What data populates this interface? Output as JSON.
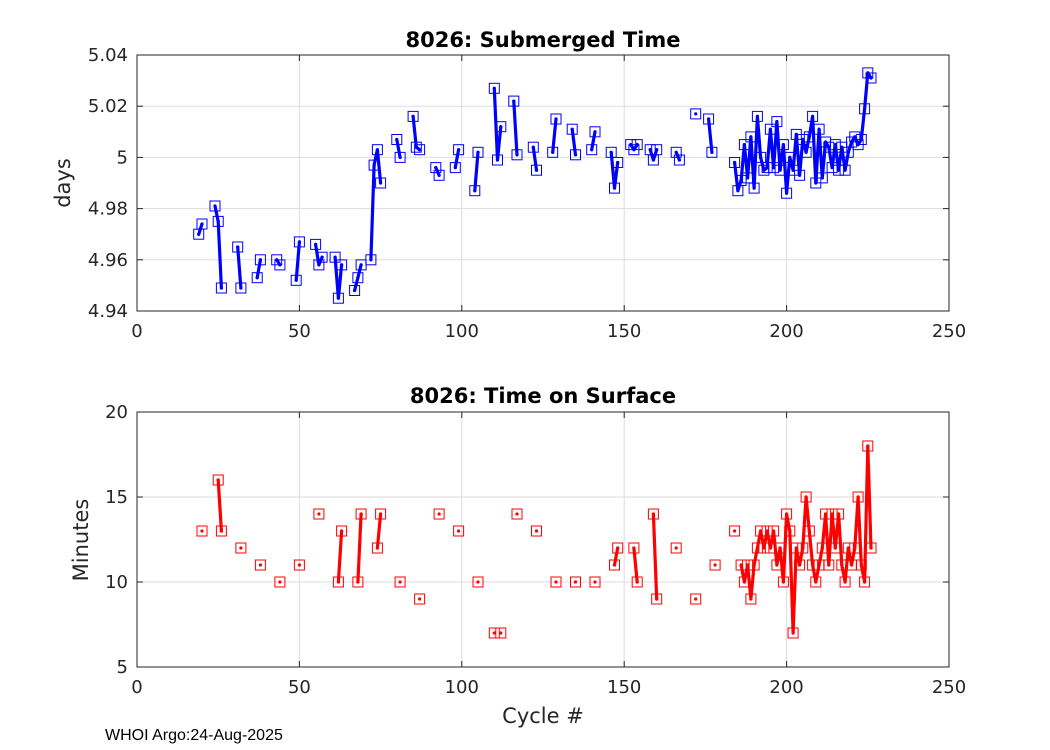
{
  "footer_text": "WHOI Argo:24-Aug-2025",
  "chart_data": [
    {
      "type": "line",
      "title": "8026: Submerged Time",
      "xlabel": "",
      "ylabel": "days",
      "xlim": [
        0,
        250
      ],
      "ylim": [
        4.94,
        5.04
      ],
      "xticks": [
        0,
        50,
        100,
        150,
        200,
        250
      ],
      "xtick_labels": [
        "0",
        "50",
        "100",
        "150",
        "200",
        "250"
      ],
      "yticks": [
        4.94,
        4.96,
        4.98,
        5.0,
        5.02,
        5.04
      ],
      "ytick_labels": [
        "4.94",
        "4.96",
        "4.98",
        "5",
        "5.02",
        "5.04"
      ],
      "grid": true,
      "color": "#0000ff",
      "marker": "square",
      "x": [
        19,
        20,
        24,
        25,
        26,
        31,
        32,
        37,
        38,
        43,
        44,
        49,
        50,
        55,
        56,
        57,
        61,
        62,
        63,
        67,
        68,
        69,
        72,
        73,
        74,
        75,
        80,
        81,
        85,
        86,
        87,
        92,
        93,
        98,
        99,
        104,
        105,
        110,
        111,
        112,
        116,
        117,
        122,
        123,
        128,
        129,
        134,
        135,
        140,
        141,
        146,
        147,
        148,
        152,
        153,
        154,
        158,
        159,
        160,
        166,
        167,
        172,
        176,
        177,
        184,
        185,
        186,
        187,
        188,
        189,
        190,
        191,
        192,
        193,
        194,
        195,
        196,
        197,
        198,
        199,
        200,
        201,
        202,
        203,
        204,
        205,
        206,
        207,
        208,
        209,
        210,
        211,
        212,
        213,
        214,
        215,
        216,
        217,
        218,
        219,
        220,
        221,
        222,
        223,
        224,
        225,
        226
      ],
      "y": [
        4.97,
        4.974,
        4.981,
        4.975,
        4.949,
        4.965,
        4.949,
        4.953,
        4.96,
        4.96,
        4.958,
        4.952,
        4.967,
        4.966,
        4.958,
        4.961,
        4.961,
        4.945,
        4.958,
        4.948,
        4.953,
        4.958,
        4.96,
        4.997,
        5.003,
        4.99,
        5.007,
        5.0,
        5.016,
        5.004,
        5.003,
        4.996,
        4.993,
        4.996,
        5.003,
        4.987,
        5.002,
        5.027,
        4.999,
        5.012,
        5.022,
        5.001,
        5.004,
        4.995,
        5.002,
        5.015,
        5.011,
        5.001,
        5.003,
        5.01,
        5.002,
        4.988,
        4.998,
        5.005,
        5.003,
        5.005,
        5.003,
        4.999,
        5.003,
        5.002,
        4.999,
        5.017,
        5.015,
        5.002,
        4.998,
        4.987,
        4.991,
        5.005,
        4.992,
        5.008,
        4.988,
        5.016,
        5.0,
        4.995,
        4.996,
        5.011,
        4.996,
        5.014,
        4.995,
        5.005,
        4.986,
        5.0,
        4.995,
        5.009,
        4.993,
        5.007,
        5.002,
        5.008,
        5.016,
        4.99,
        5.011,
        4.992,
        5.006,
        5.004,
        4.996,
        5.005,
        4.995,
        5.004,
        4.995,
        5.002,
        5.006,
        5.008,
        5.005,
        5.007,
        5.019,
        5.033,
        5.031
      ],
      "segments": [
        [
          0,
          1
        ],
        [
          2,
          4
        ],
        [
          5,
          6
        ],
        [
          7,
          8
        ],
        [
          9,
          10
        ],
        [
          11,
          12
        ],
        [
          13,
          15
        ],
        [
          16,
          18
        ],
        [
          19,
          21
        ],
        [
          22,
          25
        ],
        [
          26,
          27
        ],
        [
          28,
          30
        ],
        [
          31,
          32
        ],
        [
          33,
          34
        ],
        [
          35,
          36
        ],
        [
          37,
          39
        ],
        [
          40,
          41
        ],
        [
          42,
          43
        ],
        [
          44,
          45
        ],
        [
          46,
          47
        ],
        [
          48,
          49
        ],
        [
          50,
          52
        ],
        [
          53,
          55
        ],
        [
          56,
          58
        ],
        [
          59,
          60
        ],
        [
          61,
          61
        ],
        [
          62,
          63
        ],
        [
          64,
          106
        ]
      ]
    },
    {
      "type": "line",
      "title": "8026: Time on Surface",
      "xlabel": "Cycle #",
      "ylabel": "Minutes",
      "xlim": [
        0,
        250
      ],
      "ylim": [
        5,
        20
      ],
      "xticks": [
        0,
        50,
        100,
        150,
        200,
        250
      ],
      "xtick_labels": [
        "0",
        "50",
        "100",
        "150",
        "200",
        "250"
      ],
      "yticks": [
        5,
        10,
        15,
        20
      ],
      "ytick_labels": [
        "5",
        "10",
        "15",
        "20"
      ],
      "grid": true,
      "color": "#ff0000",
      "marker": "square",
      "x": [
        20,
        25,
        26,
        32,
        38,
        44,
        50,
        56,
        62,
        63,
        68,
        69,
        74,
        75,
        81,
        87,
        93,
        99,
        105,
        110,
        112,
        117,
        123,
        129,
        135,
        141,
        147,
        148,
        153,
        154,
        159,
        160,
        166,
        172,
        178,
        184,
        186,
        187,
        188,
        189,
        190,
        191,
        192,
        193,
        194,
        195,
        196,
        197,
        198,
        199,
        200,
        201,
        202,
        203,
        204,
        205,
        206,
        207,
        208,
        209,
        210,
        211,
        212,
        213,
        214,
        215,
        216,
        217,
        218,
        219,
        220,
        221,
        222,
        223,
        224,
        225,
        226
      ],
      "y": [
        13,
        16,
        13,
        12,
        11,
        10,
        11,
        14,
        10,
        13,
        10,
        14,
        12,
        14,
        10,
        9,
        14,
        13,
        10,
        7,
        7,
        14,
        13,
        10,
        10,
        10,
        11,
        12,
        12,
        10,
        14,
        9,
        12,
        9,
        11,
        13,
        11,
        10,
        11,
        9,
        11,
        12,
        13,
        12,
        13,
        12,
        13,
        11,
        12,
        10,
        14,
        13,
        7,
        12,
        11,
        12,
        15,
        13,
        11,
        10,
        11,
        12,
        14,
        11,
        14,
        12,
        14,
        11,
        10,
        12,
        11,
        12,
        15,
        11,
        10,
        18,
        12
      ],
      "segments": [
        [
          0,
          0
        ],
        [
          1,
          2
        ],
        [
          3,
          3
        ],
        [
          4,
          4
        ],
        [
          5,
          5
        ],
        [
          6,
          6
        ],
        [
          7,
          7
        ],
        [
          8,
          9
        ],
        [
          10,
          11
        ],
        [
          12,
          13
        ],
        [
          14,
          14
        ],
        [
          15,
          15
        ],
        [
          16,
          16
        ],
        [
          17,
          17
        ],
        [
          18,
          18
        ],
        [
          19,
          19
        ],
        [
          20,
          20
        ],
        [
          21,
          21
        ],
        [
          22,
          22
        ],
        [
          23,
          23
        ],
        [
          24,
          24
        ],
        [
          25,
          25
        ],
        [
          26,
          27
        ],
        [
          28,
          29
        ],
        [
          30,
          31
        ],
        [
          32,
          32
        ],
        [
          33,
          33
        ],
        [
          34,
          34
        ],
        [
          35,
          35
        ],
        [
          36,
          76
        ]
      ]
    }
  ]
}
